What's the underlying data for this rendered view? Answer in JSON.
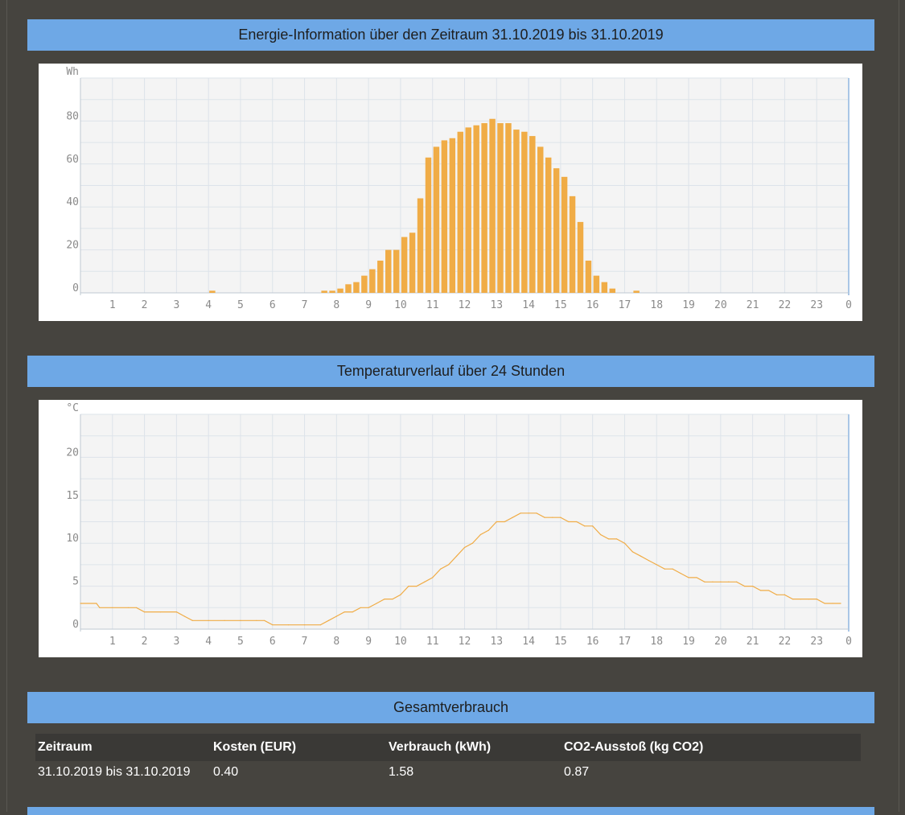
{
  "energy": {
    "header": "Energie-Information über den Zeitraum 31.10.2019 bis 31.10.2019"
  },
  "temperature": {
    "header": "Temperaturverlauf über 24 Stunden"
  },
  "summary": {
    "header": "Gesamtverbrauch",
    "columns": [
      "Zeitraum",
      "Kosten (EUR)",
      "Verbrauch (kWh)",
      "CO2-Ausstoß (kg CO2)"
    ],
    "rows": [
      [
        "31.10.2019 bis 31.10.2019",
        "0.40",
        "1.58",
        "0.87"
      ]
    ]
  },
  "colors": {
    "header_bg": "#6ea8e6",
    "bar": "#f0ac46",
    "line": "#f0ac46",
    "page_bg": "#46443f"
  },
  "chart_data": [
    {
      "type": "bar",
      "ylabel": "Wh",
      "yticks": [
        0,
        20,
        40,
        60,
        80
      ],
      "ylim": [
        0,
        100
      ],
      "xticks": [
        "1",
        "2",
        "3",
        "4",
        "5",
        "6",
        "7",
        "8",
        "9",
        "10",
        "11",
        "12",
        "13",
        "14",
        "15",
        "16",
        "17",
        "18",
        "19",
        "20",
        "21",
        "22",
        "23",
        "0"
      ],
      "xlim": [
        0,
        24
      ],
      "bar_width_hours": 0.25,
      "grid": true,
      "x": [
        4.0,
        7.5,
        7.75,
        8.0,
        8.25,
        8.5,
        8.75,
        9.0,
        9.25,
        9.5,
        9.75,
        10.0,
        10.25,
        10.5,
        10.75,
        11.0,
        11.25,
        11.5,
        11.75,
        12.0,
        12.25,
        12.5,
        12.75,
        13.0,
        13.25,
        13.5,
        13.75,
        14.0,
        14.25,
        14.5,
        14.75,
        15.0,
        15.25,
        15.5,
        15.75,
        16.0,
        16.25,
        16.5,
        17.25
      ],
      "values": [
        1,
        1,
        1,
        2,
        4,
        5,
        8,
        11,
        15,
        20,
        20,
        26,
        28,
        44,
        63,
        68,
        71,
        72,
        75,
        77,
        78,
        79,
        81,
        79,
        79,
        76,
        75,
        73,
        68,
        63,
        58,
        54,
        45,
        33,
        15,
        8,
        5,
        2,
        1
      ]
    },
    {
      "type": "line",
      "ylabel": "°C",
      "yticks": [
        0,
        5,
        10,
        15,
        20
      ],
      "ylim": [
        0,
        25
      ],
      "xticks": [
        "1",
        "2",
        "3",
        "4",
        "5",
        "6",
        "7",
        "8",
        "9",
        "10",
        "11",
        "12",
        "13",
        "14",
        "15",
        "16",
        "17",
        "18",
        "19",
        "20",
        "21",
        "22",
        "23",
        "0"
      ],
      "xlim": [
        0,
        24
      ],
      "grid": true,
      "x": [
        0.0,
        0.5,
        0.6,
        1.0,
        1.5,
        1.75,
        2.0,
        2.5,
        3.0,
        3.25,
        3.5,
        4.0,
        4.5,
        5.0,
        5.5,
        5.75,
        6.0,
        6.5,
        7.0,
        7.5,
        7.75,
        8.0,
        8.25,
        8.5,
        8.75,
        9.0,
        9.25,
        9.5,
        9.75,
        10.0,
        10.25,
        10.5,
        10.75,
        11.0,
        11.25,
        11.5,
        11.75,
        12.0,
        12.25,
        12.5,
        12.75,
        13.0,
        13.25,
        13.5,
        13.75,
        14.0,
        14.25,
        14.5,
        14.75,
        15.0,
        15.25,
        15.5,
        15.75,
        16.0,
        16.25,
        16.5,
        16.75,
        17.0,
        17.25,
        17.5,
        17.75,
        18.0,
        18.25,
        18.5,
        18.75,
        19.0,
        19.25,
        19.5,
        19.75,
        20.0,
        20.25,
        20.5,
        20.75,
        21.0,
        21.25,
        21.5,
        21.75,
        22.0,
        22.25,
        22.5,
        22.75,
        23.0,
        23.25,
        23.5,
        23.75
      ],
      "values": [
        3,
        3,
        2.5,
        2.5,
        2.5,
        2.5,
        2,
        2,
        2,
        1.5,
        1,
        1,
        1,
        1,
        1,
        1,
        0.5,
        0.5,
        0.5,
        0.5,
        1,
        1.5,
        2,
        2,
        2.5,
        2.5,
        3,
        3.5,
        3.5,
        4,
        5,
        5,
        5.5,
        6,
        7,
        7.5,
        8.5,
        9.5,
        10,
        11,
        11.5,
        12.5,
        12.5,
        13,
        13.5,
        13.5,
        13.5,
        13,
        13,
        13,
        12.5,
        12.5,
        12,
        12,
        11,
        10.5,
        10.5,
        10,
        9,
        8.5,
        8,
        7.5,
        7,
        7,
        6.5,
        6,
        6,
        5.5,
        5.5,
        5.5,
        5.5,
        5.5,
        5,
        5,
        4.5,
        4.5,
        4,
        4,
        3.5,
        3.5,
        3.5,
        3.5,
        3,
        3,
        3
      ]
    }
  ]
}
